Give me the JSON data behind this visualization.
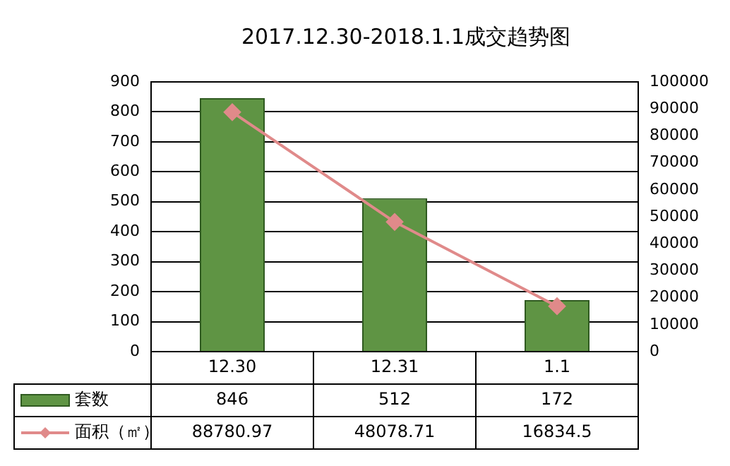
{
  "chart_data": {
    "type": "bar",
    "title": "2017.12.30-2018.1.1成交趋势图",
    "categories": [
      "12.30",
      "12.31",
      "1.1"
    ],
    "series": [
      {
        "name": "套数",
        "color": "#5f9444",
        "values": [
          846,
          512,
          172
        ]
      },
      {
        "name": "面积（㎡）",
        "type": "line",
        "axis": "y2",
        "color": "#e08a8a",
        "values": [
          88780.97,
          48078.71,
          16834.5
        ]
      }
    ],
    "ylim": [
      0,
      900
    ],
    "yticks": [
      0,
      100,
      200,
      300,
      400,
      500,
      600,
      700,
      800,
      900
    ],
    "y2lim": [
      0,
      100000
    ],
    "y2ticks": [
      0,
      10000,
      20000,
      30000,
      40000,
      50000,
      60000,
      70000,
      80000,
      90000,
      100000
    ],
    "grid": "y",
    "marker": "diamond",
    "data_labels": true,
    "legend": "bottom"
  }
}
